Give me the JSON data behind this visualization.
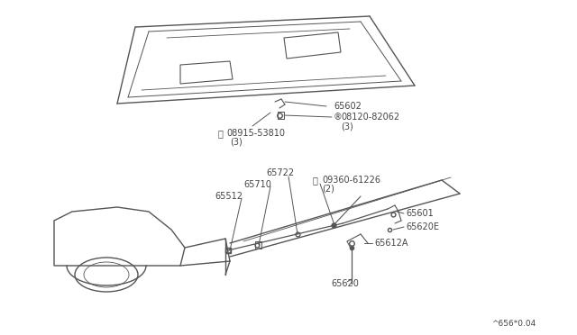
{
  "bg_color": "#ffffff",
  "line_color": "#555555",
  "text_color": "#444444",
  "fig_width": 6.4,
  "fig_height": 3.72,
  "dpi": 100,
  "footer": "^656*0.04"
}
